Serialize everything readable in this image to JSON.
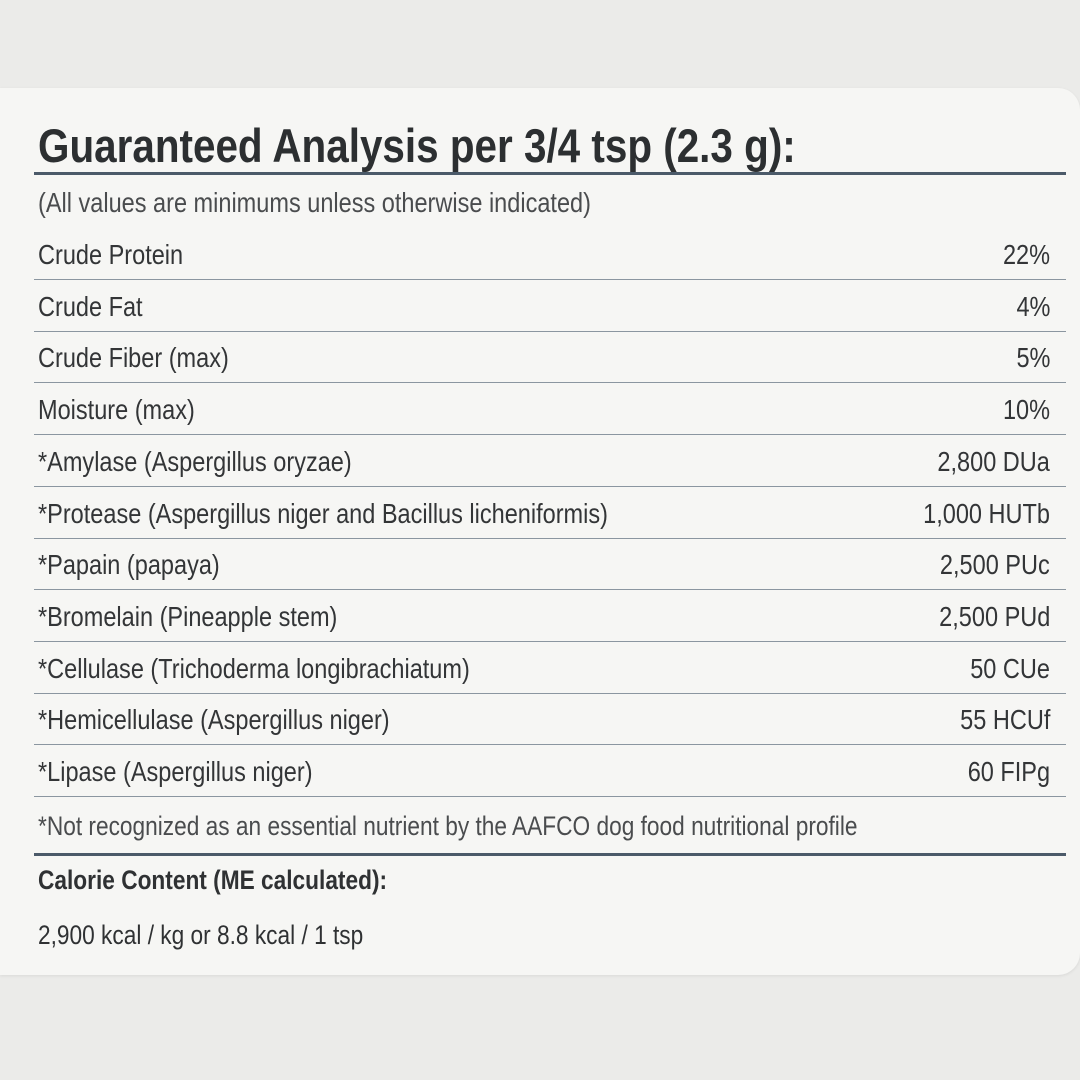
{
  "header": {
    "title": "Guaranteed Analysis per 3/4 tsp (2.3 g):",
    "note": "(All values are minimums unless otherwise indicated)"
  },
  "table": {
    "rows": [
      [
        "Crude Protein",
        "22%"
      ],
      [
        "Crude Fat",
        "4%"
      ],
      [
        "Crude Fiber (max)",
        "5%"
      ],
      [
        "Moisture (max)",
        "10%"
      ],
      [
        "*Amylase (Aspergillus oryzae)",
        "2,800 DUa"
      ],
      [
        "*Protease (Aspergillus niger and Bacillus licheniformis)",
        "1,000 HUTb"
      ],
      [
        "*Papain (papaya)",
        "2,500 PUc"
      ],
      [
        "*Bromelain (Pineapple stem)",
        "2,500 PUd"
      ],
      [
        "*Cellulase (Trichoderma longibrachiatum)",
        "50 CUe"
      ],
      [
        "*Hemicellulase (Aspergillus niger)",
        "55 HCUf"
      ],
      [
        "*Lipase (Aspergillus niger)",
        "60 FIPg"
      ]
    ]
  },
  "footnote": "*Not recognized as an essential nutrient by the AAFCO dog food nutritional profile",
  "calorie": {
    "title": "Calorie Content (ME calculated):",
    "text": "2,900 kcal / kg or 8.8 kcal / 1 tsp"
  }
}
